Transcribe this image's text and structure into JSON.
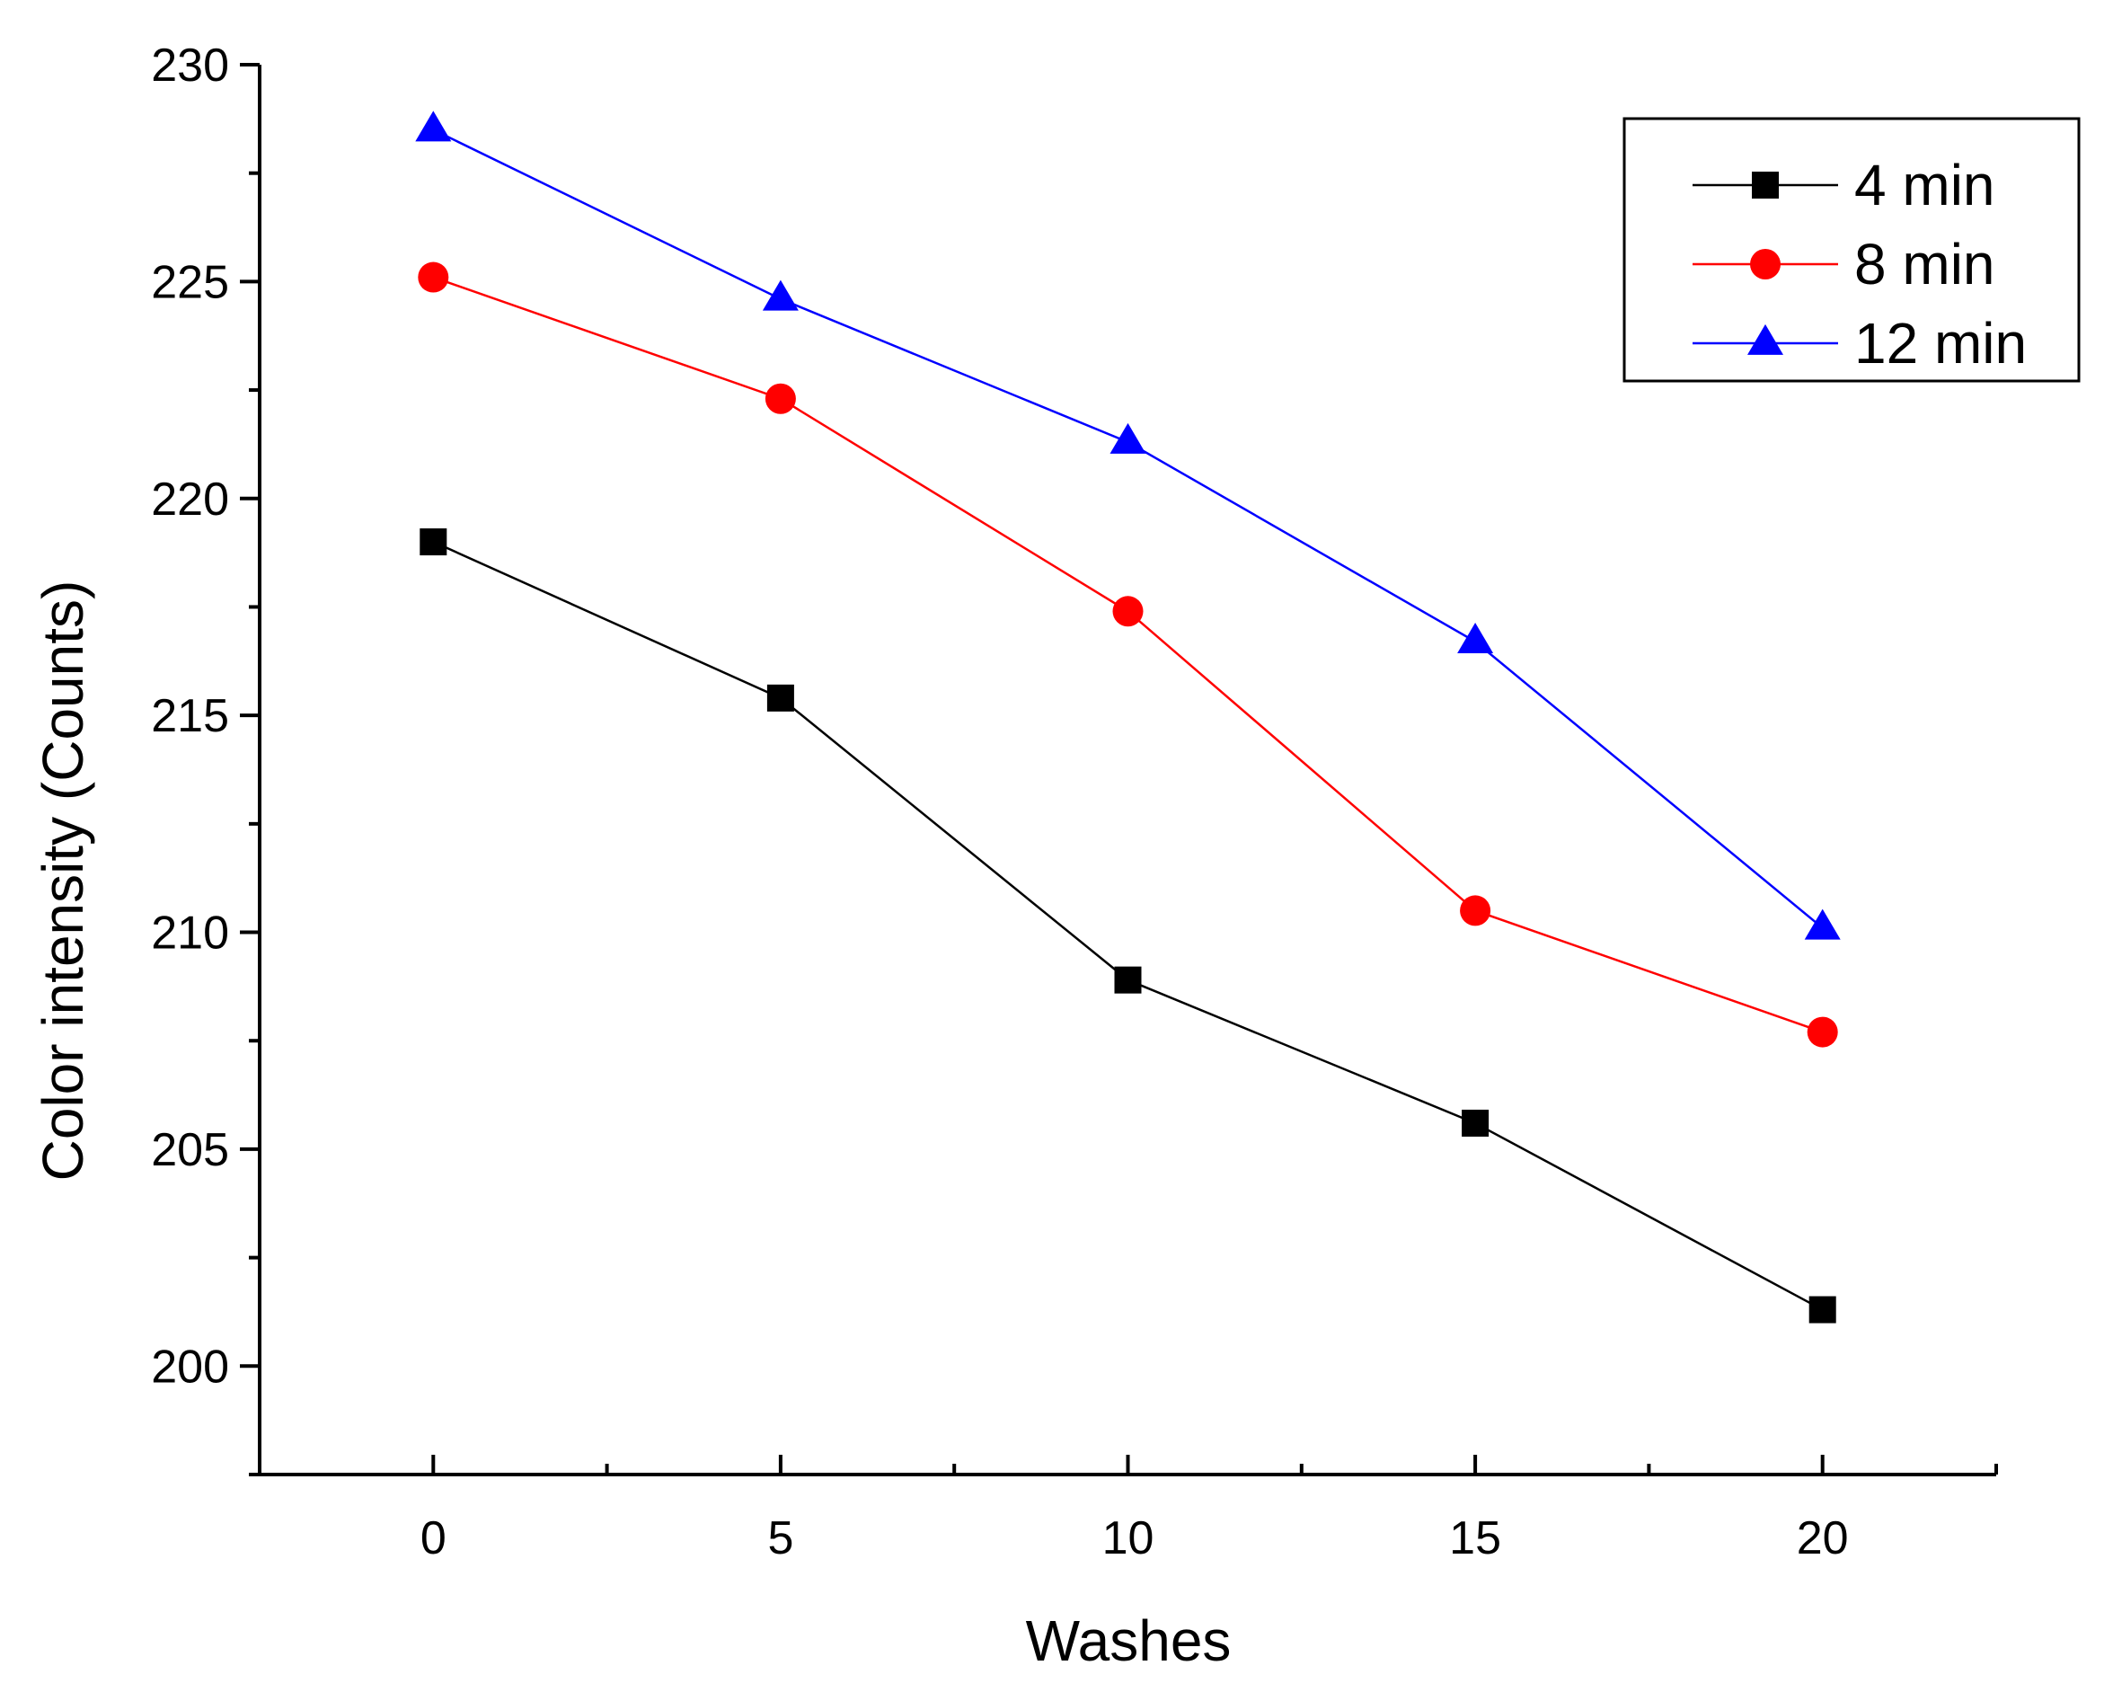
{
  "chart_data": {
    "type": "line",
    "xlabel": "Washes",
    "ylabel": "Color intensity (Counts)",
    "xlim": [
      -2.5,
      22.5
    ],
    "ylim": [
      197.5,
      230
    ],
    "x_ticks": [
      0,
      5,
      10,
      15,
      20
    ],
    "x_tick_labels": [
      "0",
      "5",
      "10",
      "15",
      "20"
    ],
    "y_ticks": [
      200,
      205,
      210,
      215,
      220,
      225,
      230
    ],
    "y_tick_labels": [
      "200",
      "205",
      "210",
      "215",
      "220",
      "225",
      "230"
    ],
    "x": [
      0,
      5,
      10,
      15,
      20
    ],
    "grid": false,
    "legend_position": "top-right",
    "series": [
      {
        "name": "4 min",
        "values": [
          219.0,
          215.4,
          208.9,
          205.6,
          201.3
        ],
        "color": "#000000",
        "marker": "square"
      },
      {
        "name": "8 min",
        "values": [
          225.1,
          222.3,
          217.4,
          210.5,
          207.7
        ],
        "color": "#ff0000",
        "marker": "circle"
      },
      {
        "name": "12 min",
        "values": [
          228.5,
          224.6,
          221.3,
          216.7,
          210.1
        ],
        "color": "#0000ff",
        "marker": "triangle"
      }
    ]
  }
}
